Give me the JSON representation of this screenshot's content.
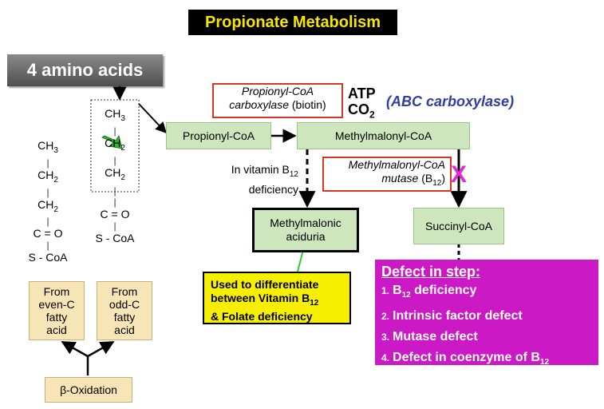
{
  "title": "Propionate Metabolism",
  "amino_acids": "4 amino acids",
  "chain_left": [
    "CH3",
    "CH2",
    "CH2",
    "C = O",
    "S - CoA"
  ],
  "chain_right": [
    "CH3",
    "CH2",
    "CH2",
    "C = O",
    "S - CoA"
  ],
  "source_even": [
    "From",
    "even-C",
    "fatty",
    "acid"
  ],
  "source_odd": [
    "From",
    "odd-C",
    "fatty",
    "acid"
  ],
  "beta_oxidation": "β-Oxidation",
  "propionyl_coa": "Propionyl-CoA",
  "methylmalonyl_coa": "Methylmalonyl-CoA",
  "carboxylase": {
    "line1": "Propionyl-CoA",
    "line2_italic": "carboxylase",
    "line2_normal": " (biotin)"
  },
  "atp": "ATP",
  "co2": "CO",
  "co2_sub": "2",
  "abc": "(ABC carboxylase)",
  "b12_note": {
    "line1": "In vitamin B",
    "sub": "12",
    "line2": "deficiency"
  },
  "mutase": {
    "line1": "Methylmalonyl-CoA",
    "line2_italic": "mutase",
    "line2_normal": " (B",
    "sub": "12",
    "close": ")"
  },
  "x_mark": "X",
  "mma": [
    "Methylmalonic",
    "aciduria"
  ],
  "succinyl_coa": "Succinyl-CoA",
  "used_to": {
    "line1": "Used to differentiate",
    "line2": "between Vitamin B",
    "sub": "12",
    "line3": "& Folate deficiency"
  },
  "defect": {
    "heading": "Defect in step",
    "colon": ":",
    "items": [
      {
        "num": "1.",
        "pre": "B",
        "sub": "12",
        "text": " deficiency"
      },
      {
        "num": "2.",
        "pre": "",
        "sub": "",
        "text": "Intrinsic factor defect"
      },
      {
        "num": "3.",
        "pre": "",
        "sub": "",
        "text": "Mutase defect"
      },
      {
        "num": "4.",
        "pre": "Defect in coenzyme of B",
        "sub": "12",
        "text": ""
      }
    ]
  }
}
